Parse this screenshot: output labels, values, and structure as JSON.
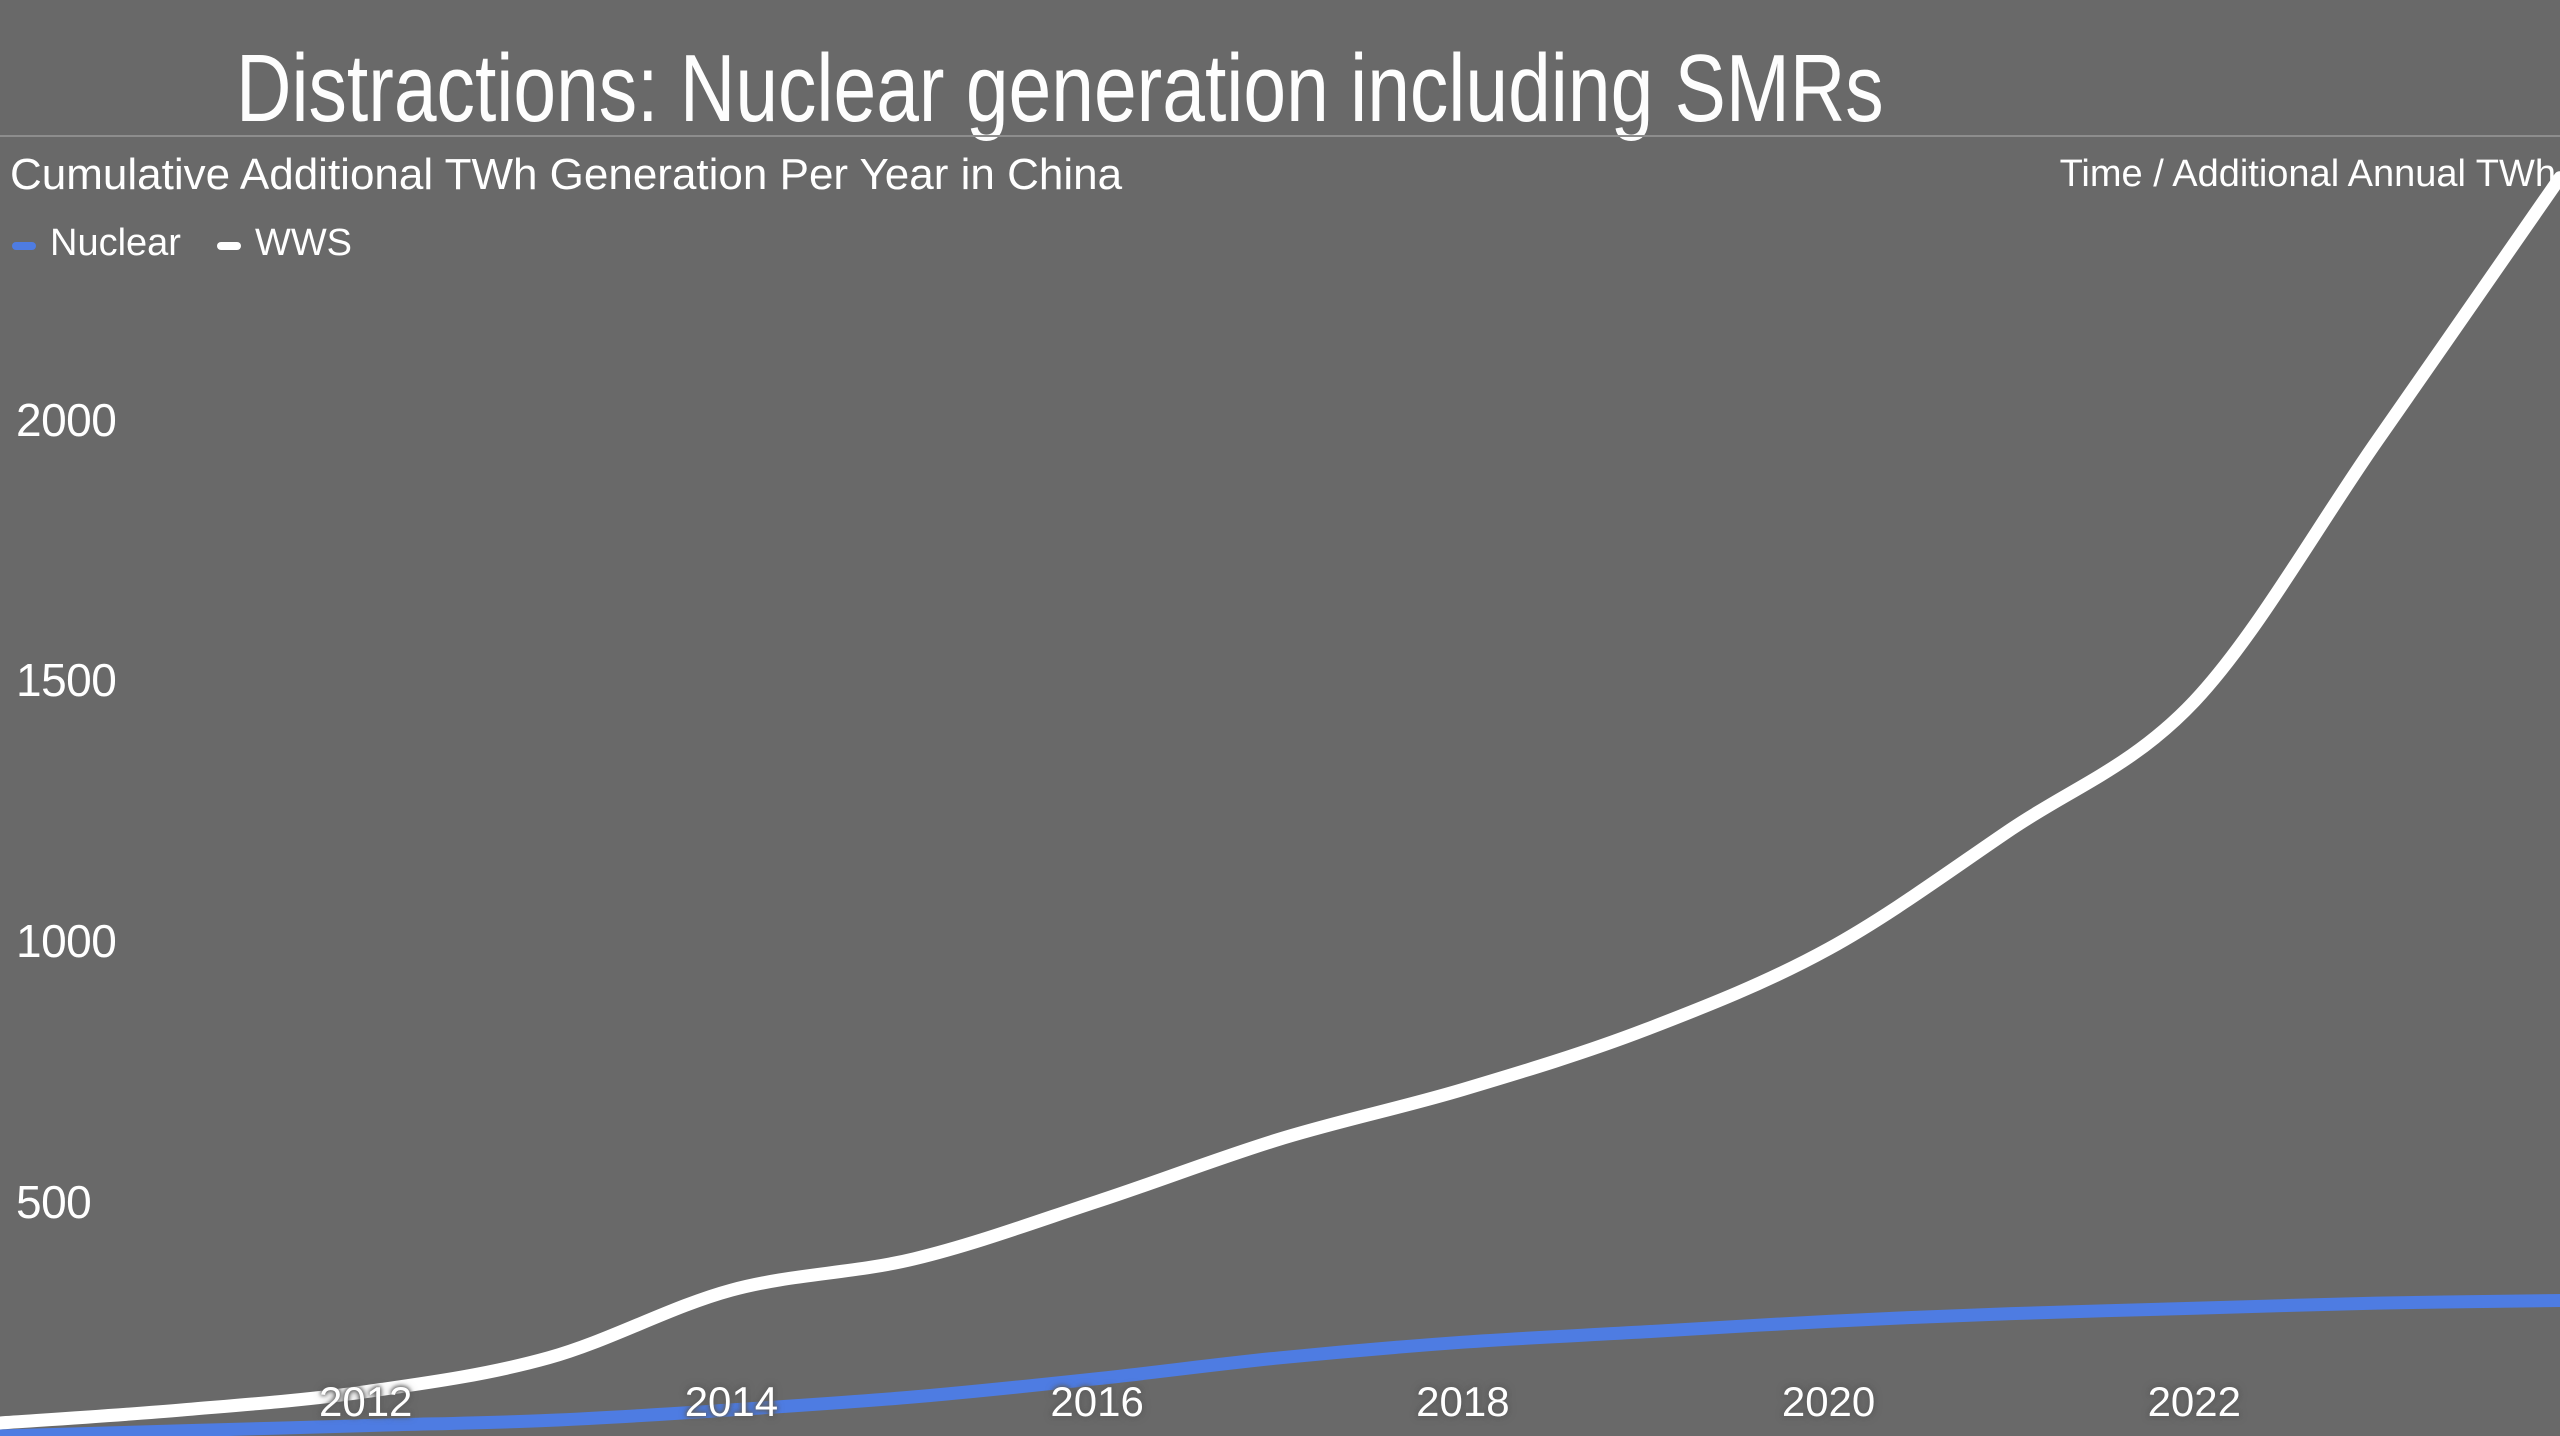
{
  "header": {
    "title": "Distractions: Nuclear generation including SMRs",
    "subtitle": "Cumulative Additional TWh Generation Per Year in China",
    "axis_note": "Time / Additional Annual TWh"
  },
  "colors": {
    "background": "#696969",
    "divider": "#8d8d8d",
    "nuclear_line": "#4e7ce2",
    "wws_line": "#ffffff",
    "text": "#ffffff"
  },
  "legend": {
    "items": [
      {
        "label": "Nuclear",
        "color": "#4e7ce2"
      },
      {
        "label": "WWS",
        "color": "#ffffff"
      }
    ]
  },
  "chart_data": {
    "type": "line",
    "title": "Cumulative Additional TWh Generation Per Year in China",
    "xlabel": "Time",
    "ylabel": "Additional Annual TWh",
    "x": [
      2010,
      2011,
      2012,
      2013,
      2014,
      2015,
      2016,
      2017,
      2018,
      2019,
      2020,
      2021,
      2022,
      2023,
      2024
    ],
    "series": [
      {
        "name": "Nuclear",
        "color": "#4e7ce2",
        "values": [
          50,
          60,
          70,
          80,
          100,
          125,
          160,
          200,
          230,
          250,
          270,
          285,
          295,
          305,
          310
        ]
      },
      {
        "name": "WWS",
        "color": "#ffffff",
        "values": [
          75,
          100,
          135,
          200,
          330,
          390,
          500,
          620,
          715,
          830,
          985,
          1215,
          1460,
          1960,
          2465
        ]
      }
    ],
    "x_ticks": [
      2012,
      2014,
      2016,
      2018,
      2020,
      2022
    ],
    "y_ticks": [
      500,
      1000,
      1500,
      2000
    ],
    "x_range": [
      2010,
      2024
    ],
    "ylim_visible": [
      50,
      2806
    ],
    "grid": false,
    "legend_position": "top-left",
    "line_width": 13
  }
}
